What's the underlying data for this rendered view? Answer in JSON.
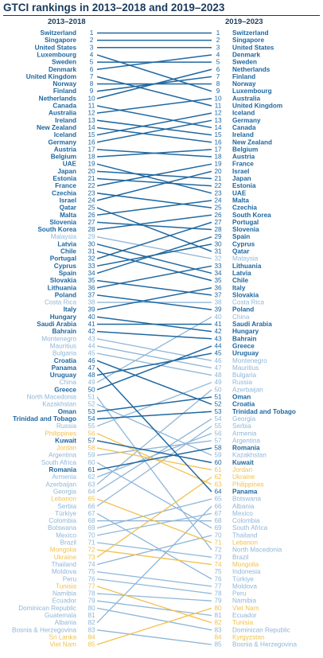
{
  "title": "GTCI rankings in 2013–2018 and 2019–2023",
  "colors": {
    "dark": "#2068a0",
    "light": "#8fb6d8",
    "highlight": "#f2c14e",
    "title": "#1a3a5c"
  },
  "chart_data": {
    "type": "slope",
    "left_period": "2013–2018",
    "right_period": "2019–2023",
    "left": [
      {
        "rank": "1",
        "name": "Switzerland",
        "style": "dark"
      },
      {
        "rank": "2",
        "name": "Singapore",
        "style": "dark"
      },
      {
        "rank": "3",
        "name": "United States",
        "style": "dark"
      },
      {
        "rank": "4",
        "name": "Luxembourg",
        "style": "dark"
      },
      {
        "rank": "5",
        "name": "Sweden",
        "style": "dark"
      },
      {
        "rank": "6",
        "name": "Denmark",
        "style": "dark"
      },
      {
        "rank": "7",
        "name": "United Kingdom",
        "style": "dark"
      },
      {
        "rank": "8",
        "name": "Norway",
        "style": "dark"
      },
      {
        "rank": "9",
        "name": "Finland",
        "style": "dark"
      },
      {
        "rank": "10",
        "name": "Netherlands",
        "style": "dark"
      },
      {
        "rank": "11",
        "name": "Canada",
        "style": "dark"
      },
      {
        "rank": "12",
        "name": "Australia",
        "style": "dark"
      },
      {
        "rank": "13",
        "name": "Ireland",
        "style": "dark"
      },
      {
        "rank": "14",
        "name": "New Zealand",
        "style": "dark"
      },
      {
        "rank": "15",
        "name": "Iceland",
        "style": "dark"
      },
      {
        "rank": "16",
        "name": "Germany",
        "style": "dark"
      },
      {
        "rank": "17",
        "name": "Austria",
        "style": "dark"
      },
      {
        "rank": "18",
        "name": "Belgium",
        "style": "dark"
      },
      {
        "rank": "19",
        "name": "UAE",
        "style": "dark"
      },
      {
        "rank": "20",
        "name": "Japan",
        "style": "dark"
      },
      {
        "rank": "21",
        "name": "Estonia",
        "style": "dark"
      },
      {
        "rank": "22",
        "name": "France",
        "style": "dark"
      },
      {
        "rank": "23",
        "name": "Czechia",
        "style": "dark"
      },
      {
        "rank": "24",
        "name": "Israel",
        "style": "dark"
      },
      {
        "rank": "25",
        "name": "Qatar",
        "style": "dark"
      },
      {
        "rank": "26",
        "name": "Malta",
        "style": "dark"
      },
      {
        "rank": "27",
        "name": "Slovenia",
        "style": "dark"
      },
      {
        "rank": "28",
        "name": "South Korea",
        "style": "dark"
      },
      {
        "rank": "29",
        "name": "Malaysia",
        "style": "light"
      },
      {
        "rank": "30",
        "name": "Latvia",
        "style": "dark"
      },
      {
        "rank": "31",
        "name": "Chile",
        "style": "dark"
      },
      {
        "rank": "32",
        "name": "Portugal",
        "style": "dark"
      },
      {
        "rank": "33",
        "name": "Cyprus",
        "style": "dark"
      },
      {
        "rank": "34",
        "name": "Spain",
        "style": "dark"
      },
      {
        "rank": "35",
        "name": "Slovakia",
        "style": "dark"
      },
      {
        "rank": "36",
        "name": "Lithuania",
        "style": "dark"
      },
      {
        "rank": "37",
        "name": "Poland",
        "style": "dark"
      },
      {
        "rank": "38",
        "name": "Costa Rica",
        "style": "light"
      },
      {
        "rank": "39",
        "name": "Italy",
        "style": "dark"
      },
      {
        "rank": "40",
        "name": "Hungary",
        "style": "dark"
      },
      {
        "rank": "41",
        "name": "Saudi Arabia",
        "style": "dark"
      },
      {
        "rank": "42",
        "name": "Bahrain",
        "style": "dark"
      },
      {
        "rank": "43",
        "name": "Montenegro",
        "style": "light"
      },
      {
        "rank": "44",
        "name": "Mauritius",
        "style": "light"
      },
      {
        "rank": "45",
        "name": "Bulgaria",
        "style": "light"
      },
      {
        "rank": "46",
        "name": "Croatia",
        "style": "dark"
      },
      {
        "rank": "47",
        "name": "Panama",
        "style": "dark"
      },
      {
        "rank": "48",
        "name": "Uruguay",
        "style": "dark"
      },
      {
        "rank": "49",
        "name": "China",
        "style": "light"
      },
      {
        "rank": "50",
        "name": "Greece",
        "style": "dark"
      },
      {
        "rank": "51",
        "name": "North Macedonia",
        "style": "light"
      },
      {
        "rank": "52",
        "name": "Kazakhstan",
        "style": "light"
      },
      {
        "rank": "53",
        "name": "Oman",
        "style": "dark"
      },
      {
        "rank": "54",
        "name": "Trinidad and Tobago",
        "style": "dark"
      },
      {
        "rank": "55",
        "name": "Russia",
        "style": "light"
      },
      {
        "rank": "56",
        "name": "Philippines",
        "style": "highlight"
      },
      {
        "rank": "57",
        "name": "Kuwait",
        "style": "dark"
      },
      {
        "rank": "58",
        "name": "Jordan",
        "style": "highlight"
      },
      {
        "rank": "59",
        "name": "Argentina",
        "style": "light"
      },
      {
        "rank": "60",
        "name": "South Africa",
        "style": "light"
      },
      {
        "rank": "61",
        "name": "Romania",
        "style": "dark"
      },
      {
        "rank": "62",
        "name": "Armenia",
        "style": "light"
      },
      {
        "rank": "63",
        "name": "Azerbaijan",
        "style": "light"
      },
      {
        "rank": "64",
        "name": "Georgia",
        "style": "light"
      },
      {
        "rank": "65",
        "name": "Lebanon",
        "style": "highlight"
      },
      {
        "rank": "66",
        "name": "Serbia",
        "style": "light"
      },
      {
        "rank": "67",
        "name": "Türkiye",
        "style": "light"
      },
      {
        "rank": "68",
        "name": "Colombia",
        "style": "light"
      },
      {
        "rank": "69",
        "name": "Botswana",
        "style": "light"
      },
      {
        "rank": "70",
        "name": "Mexico",
        "style": "light"
      },
      {
        "rank": "71",
        "name": "Brazil",
        "style": "light"
      },
      {
        "rank": "72",
        "name": "Mongolia",
        "style": "highlight"
      },
      {
        "rank": "73",
        "name": "Ukraine",
        "style": "highlight"
      },
      {
        "rank": "74",
        "name": "Thailand",
        "style": "light"
      },
      {
        "rank": "75",
        "name": "Moldova",
        "style": "light"
      },
      {
        "rank": "76",
        "name": "Peru",
        "style": "light"
      },
      {
        "rank": "77",
        "name": "Tunisia",
        "style": "highlight"
      },
      {
        "rank": "78",
        "name": "Namibia",
        "style": "light"
      },
      {
        "rank": "79",
        "name": "Ecuador",
        "style": "light"
      },
      {
        "rank": "80",
        "name": "Dominican Republic",
        "style": "light"
      },
      {
        "rank": "81",
        "name": "Guatemala",
        "style": "light"
      },
      {
        "rank": "82",
        "name": "Albania",
        "style": "light"
      },
      {
        "rank": "83",
        "name": "Bosnia & Herzegovina",
        "style": "light"
      },
      {
        "rank": "84",
        "name": "Sri Lanka",
        "style": "highlight"
      },
      {
        "rank": "85",
        "name": "Viet Nam",
        "style": "highlight"
      }
    ],
    "right": [
      {
        "rank": "1",
        "name": "Switzerland",
        "style": "dark"
      },
      {
        "rank": "2",
        "name": "Singapore",
        "style": "dark"
      },
      {
        "rank": "3",
        "name": "United States",
        "style": "dark"
      },
      {
        "rank": "4",
        "name": "Denmark",
        "style": "dark"
      },
      {
        "rank": "5",
        "name": "Sweden",
        "style": "dark"
      },
      {
        "rank": "6",
        "name": "Netherlands",
        "style": "dark"
      },
      {
        "rank": "7",
        "name": "Finland",
        "style": "dark"
      },
      {
        "rank": "8",
        "name": "Norway",
        "style": "dark"
      },
      {
        "rank": "9",
        "name": "Luxembourg",
        "style": "dark"
      },
      {
        "rank": "10",
        "name": "Australia",
        "style": "dark"
      },
      {
        "rank": "11",
        "name": "United Kingdom",
        "style": "dark"
      },
      {
        "rank": "12",
        "name": "Iceland",
        "style": "dark"
      },
      {
        "rank": "13",
        "name": "Germany",
        "style": "dark"
      },
      {
        "rank": "14",
        "name": "Canada",
        "style": "dark"
      },
      {
        "rank": "15",
        "name": "Ireland",
        "style": "dark"
      },
      {
        "rank": "16",
        "name": "New Zealand",
        "style": "dark"
      },
      {
        "rank": "17",
        "name": "Belgium",
        "style": "dark"
      },
      {
        "rank": "18",
        "name": "Austria",
        "style": "dark"
      },
      {
        "rank": "19",
        "name": "France",
        "style": "dark"
      },
      {
        "rank": "20",
        "name": "Israel",
        "style": "dark"
      },
      {
        "rank": "21",
        "name": "Japan",
        "style": "dark"
      },
      {
        "rank": "22",
        "name": "Estonia",
        "style": "dark"
      },
      {
        "rank": "23",
        "name": "UAE",
        "style": "dark"
      },
      {
        "rank": "24",
        "name": "Malta",
        "style": "dark"
      },
      {
        "rank": "25",
        "name": "Czechia",
        "style": "dark"
      },
      {
        "rank": "26",
        "name": "South Korea",
        "style": "dark"
      },
      {
        "rank": "27",
        "name": "Portugal",
        "style": "dark"
      },
      {
        "rank": "28",
        "name": "Slovenia",
        "style": "dark"
      },
      {
        "rank": "29",
        "name": "Spain",
        "style": "dark"
      },
      {
        "rank": "30",
        "name": "Cyprus",
        "style": "dark"
      },
      {
        "rank": "31",
        "name": "Qatar",
        "style": "dark"
      },
      {
        "rank": "32",
        "name": "Malaysia",
        "style": "light"
      },
      {
        "rank": "33",
        "name": "Lithuania",
        "style": "dark"
      },
      {
        "rank": "34",
        "name": "Latvia",
        "style": "dark"
      },
      {
        "rank": "35",
        "name": "Chile",
        "style": "dark"
      },
      {
        "rank": "36",
        "name": "Italy",
        "style": "dark"
      },
      {
        "rank": "37",
        "name": "Slovakia",
        "style": "dark"
      },
      {
        "rank": "38",
        "name": "Costa Rica",
        "style": "light"
      },
      {
        "rank": "39",
        "name": "Poland",
        "style": "dark"
      },
      {
        "rank": "40",
        "name": "China",
        "style": "light"
      },
      {
        "rank": "41",
        "name": "Saudi Arabia",
        "style": "dark"
      },
      {
        "rank": "42",
        "name": "Hungary",
        "style": "dark"
      },
      {
        "rank": "43",
        "name": "Bahrain",
        "style": "dark"
      },
      {
        "rank": "44",
        "name": "Greece",
        "style": "dark"
      },
      {
        "rank": "45",
        "name": "Uruguay",
        "style": "dark"
      },
      {
        "rank": "46",
        "name": "Montenegro",
        "style": "light"
      },
      {
        "rank": "47",
        "name": "Mauritius",
        "style": "light"
      },
      {
        "rank": "48",
        "name": "Bulgaria",
        "style": "light"
      },
      {
        "rank": "49",
        "name": "Russia",
        "style": "light"
      },
      {
        "rank": "50",
        "name": "Azerbaijan",
        "style": "light"
      },
      {
        "rank": "51",
        "name": "Oman",
        "style": "dark"
      },
      {
        "rank": "52",
        "name": "Croatia",
        "style": "dark"
      },
      {
        "rank": "53",
        "name": "Trinidad and Tobago",
        "style": "dark"
      },
      {
        "rank": "54",
        "name": "Georgia",
        "style": "light"
      },
      {
        "rank": "55",
        "name": "Serbia",
        "style": "light"
      },
      {
        "rank": "56",
        "name": "Armenia",
        "style": "light"
      },
      {
        "rank": "57",
        "name": "Argentina",
        "style": "light"
      },
      {
        "rank": "58",
        "name": "Romania",
        "style": "dark"
      },
      {
        "rank": "59",
        "name": "Kazakhstan",
        "style": "light"
      },
      {
        "rank": "60",
        "name": "Kuwait",
        "style": "dark"
      },
      {
        "rank": "61",
        "name": "Jordan",
        "style": "highlight"
      },
      {
        "rank": "62",
        "name": "Ukraine",
        "style": "highlight"
      },
      {
        "rank": "63",
        "name": "Philippines",
        "style": "highlight"
      },
      {
        "rank": "64",
        "name": "Panama",
        "style": "dark"
      },
      {
        "rank": "65",
        "name": "Botswana",
        "style": "light"
      },
      {
        "rank": "66",
        "name": "Albania",
        "style": "light"
      },
      {
        "rank": "67",
        "name": "Mexico",
        "style": "light"
      },
      {
        "rank": "68",
        "name": "Colombia",
        "style": "light"
      },
      {
        "rank": "69",
        "name": "South Africa",
        "style": "light"
      },
      {
        "rank": "70",
        "name": "Thailand",
        "style": "light"
      },
      {
        "rank": "71",
        "name": "Lebanon",
        "style": "highlight"
      },
      {
        "rank": "72",
        "name": "North Macedonia",
        "style": "light"
      },
      {
        "rank": "73",
        "name": "Brazil",
        "style": "light"
      },
      {
        "rank": "74",
        "name": "Mongolia",
        "style": "highlight"
      },
      {
        "rank": "75",
        "name": "Indonesia",
        "style": "light"
      },
      {
        "rank": "76",
        "name": "Türkiye",
        "style": "light"
      },
      {
        "rank": "77",
        "name": "Moldova",
        "style": "light"
      },
      {
        "rank": "78",
        "name": "Peru",
        "style": "light"
      },
      {
        "rank": "79",
        "name": "Namibia",
        "style": "light"
      },
      {
        "rank": "80",
        "name": "Viet Nam",
        "style": "highlight"
      },
      {
        "rank": "81",
        "name": "Ecuador",
        "style": "light"
      },
      {
        "rank": "82",
        "name": "Tunisia",
        "style": "highlight"
      },
      {
        "rank": "83",
        "name": "Dominican Republic",
        "style": "light"
      },
      {
        "rank": "84",
        "name": "Kyrgyzstan",
        "style": "highlight"
      },
      {
        "rank": "85",
        "name": "Bosnia & Herzegovina",
        "style": "light"
      }
    ]
  }
}
